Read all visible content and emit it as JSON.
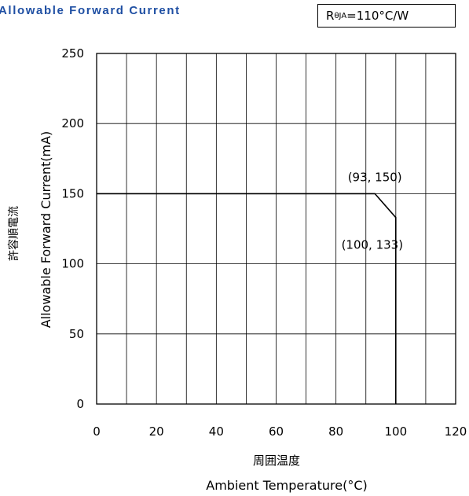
{
  "chart_data": {
    "type": "line",
    "title": "Allowable Forward Current",
    "thermal_resistance": {
      "symbol": "R",
      "subscript": "θJA",
      "value": "=110°C/W"
    },
    "xlabel_jp": "周囲温度",
    "xlabel": "Ambient Temperature(°C)",
    "ylabel_jp": "許容順電流",
    "ylabel": "Allowable Forward Current(mA)",
    "xlim": [
      0,
      120
    ],
    "ylim": [
      0,
      250
    ],
    "x_ticks": [
      0,
      10,
      20,
      30,
      40,
      50,
      60,
      70,
      80,
      90,
      100,
      110,
      120
    ],
    "x_tick_labels": [
      "0",
      "20",
      "40",
      "60",
      "80",
      "100",
      "120"
    ],
    "y_ticks": [
      0,
      50,
      100,
      150,
      200,
      250
    ],
    "y_tick_labels": [
      "0",
      "50",
      "100",
      "150",
      "200",
      "250"
    ],
    "grid": true,
    "series": [
      {
        "x": [
          0,
          93,
          100,
          100
        ],
        "y": [
          150,
          150,
          133,
          0
        ]
      }
    ],
    "annotations": [
      {
        "text": "(93, 150)",
        "x": 93,
        "y": 150
      },
      {
        "text": "(100, 133)",
        "x": 100,
        "y": 133
      }
    ]
  }
}
